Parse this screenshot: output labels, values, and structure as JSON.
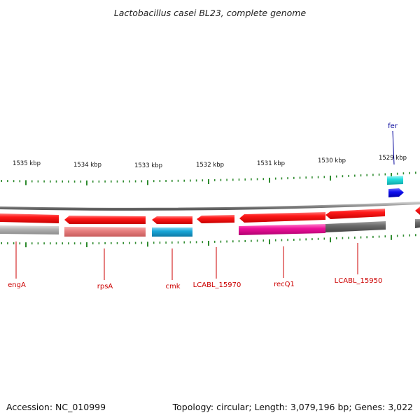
{
  "title": "Lactobacillus casei BL23, complete genome",
  "footer": {
    "accession": "Accession: NC_010999",
    "summary": "Topology: circular; Length: 3,079,196 bp; Genes: 3,022"
  },
  "colors": {
    "tick": "#2e8b2e",
    "backbone": "#8a8a8a",
    "label_red": "#cc0000",
    "label_blue": "#000099"
  },
  "ticks": {
    "major_labels": [
      "1535 kbp",
      "1534 kbp",
      "1533 kbp",
      "1532 kbp",
      "1531 kbp",
      "1530 kbp",
      "1529 kbp"
    ]
  },
  "genes": [
    {
      "label": "engA",
      "strand": "reverse",
      "color": "#ff0000",
      "cog_color": "#b0b0b0"
    },
    {
      "label": "rpsA",
      "strand": "reverse",
      "color": "#ff0000",
      "cog_color": "#e88080"
    },
    {
      "label": "cmk",
      "strand": "reverse",
      "color": "#ff0000",
      "cog_color": "#1aa7d8"
    },
    {
      "label": "LCABL_15970",
      "strand": "reverse",
      "color": "#ff0000",
      "cog_color": ""
    },
    {
      "label": "recQ1",
      "strand": "reverse",
      "color": "#ff0000",
      "cog_color": "#ee1199"
    },
    {
      "label": "LCABL_15950",
      "strand": "reverse",
      "color": "#ff0000",
      "cog_color": "#666666"
    },
    {
      "label": "fer",
      "strand": "forward",
      "color": "#0000ee",
      "cog_color": "#22dddd"
    },
    {
      "label": "",
      "strand": "reverse",
      "color": "#ff0000",
      "cog_color": "#666666"
    }
  ]
}
